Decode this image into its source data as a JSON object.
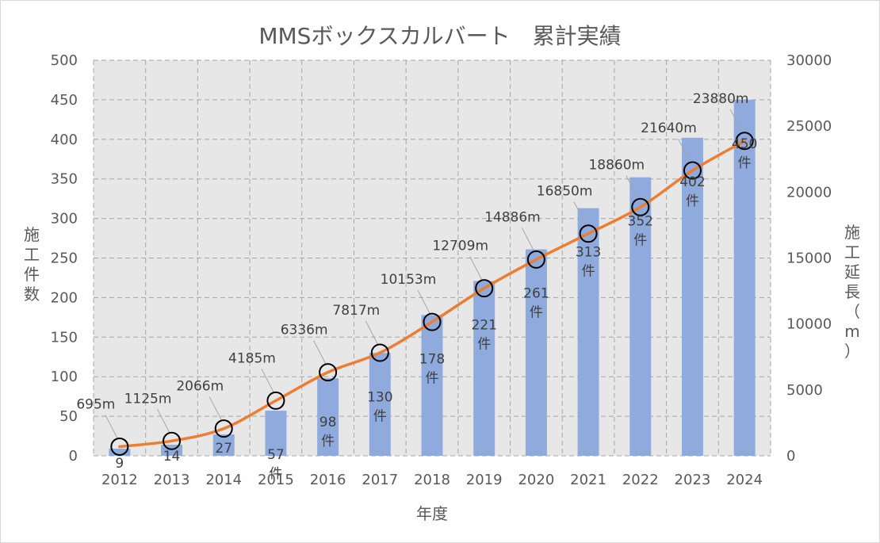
{
  "chart_data": {
    "type": "bar",
    "title": "MMSボックスカルバート　累計実績",
    "xlabel": "年度",
    "ylabel": "施工件数",
    "y2label": "施工延長（m）",
    "ylim": [
      0,
      500
    ],
    "y2lim": [
      0,
      30000
    ],
    "yticks": [
      "0",
      "50",
      "100",
      "150",
      "200",
      "250",
      "300",
      "350",
      "400",
      "450",
      "500"
    ],
    "y2ticks": [
      "0",
      "5000",
      "10000",
      "15000",
      "20000",
      "25000",
      "30000"
    ],
    "grid": true,
    "categories": [
      "2012",
      "2013",
      "2014",
      "2015",
      "2016",
      "2017",
      "2018",
      "2019",
      "2020",
      "2021",
      "2022",
      "2023",
      "2024"
    ],
    "series": [
      {
        "type": "bar",
        "axis": "left",
        "values": [
          9,
          14,
          27,
          57,
          98,
          130,
          178,
          221,
          261,
          313,
          352,
          402,
          450
        ],
        "labels": [
          "9",
          "14",
          "27",
          "57|件",
          "98|件",
          "130|件",
          "178|件",
          "221|件",
          "261|件",
          "313|件",
          "352|件",
          "402|件",
          "450|件"
        ],
        "color": "#8faadc"
      },
      {
        "type": "line",
        "axis": "right",
        "values": [
          695,
          1125,
          2066,
          4185,
          6336,
          7817,
          10153,
          12709,
          14886,
          16850,
          18860,
          21640,
          23880
        ],
        "labels": [
          "695m",
          "1125m",
          "2066m",
          "4185m",
          "6336m",
          "7817m",
          "10153m",
          "12709m",
          "14886m",
          "16850m",
          "18860m",
          "21640m",
          "23880m"
        ],
        "color": "#ed7d31"
      }
    ]
  }
}
